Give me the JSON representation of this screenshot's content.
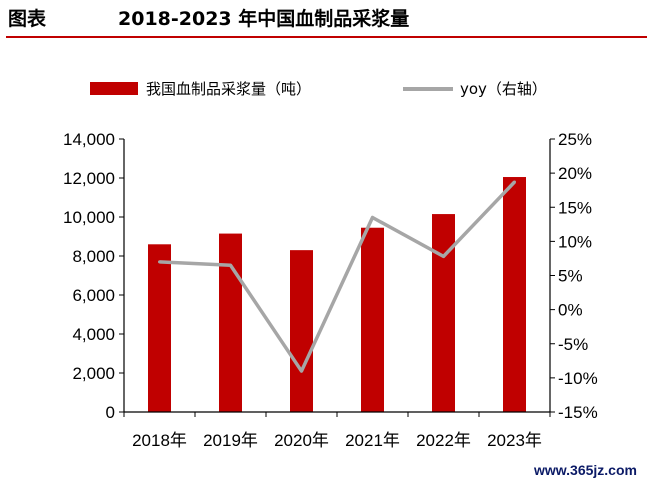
{
  "header": {
    "label": "图表",
    "title": "2018-2023 年中国血制品采浆量"
  },
  "watermark": "www.365jz.com",
  "colors": {
    "bar": "#c00000",
    "line": "#a6a6a6",
    "rule": "#c00000",
    "axis": "#000000"
  },
  "chart_data": {
    "type": "bar",
    "title": "2018-2023 年中国血制品采浆量",
    "categories": [
      "2018年",
      "2019年",
      "2020年",
      "2021年",
      "2022年",
      "2023年"
    ],
    "series": [
      {
        "name": "我国血制品采浆量（吨）",
        "type": "bar",
        "axis": "left",
        "values": [
          8600,
          9150,
          8300,
          9450,
          10150,
          12050
        ]
      },
      {
        "name": "yoy（右轴）",
        "type": "line",
        "axis": "right",
        "values": [
          7.0,
          6.5,
          -9.0,
          13.5,
          7.8,
          18.7
        ]
      }
    ],
    "y_left": {
      "min": 0,
      "max": 14000,
      "ticks": [
        0,
        2000,
        4000,
        6000,
        8000,
        10000,
        12000,
        14000
      ],
      "tick_labels": [
        "0",
        "2,000",
        "4,000",
        "6,000",
        "8,000",
        "10,000",
        "12,000",
        "14,000"
      ]
    },
    "y_right": {
      "min": -15,
      "max": 25,
      "ticks": [
        -15,
        -10,
        -5,
        0,
        5,
        10,
        15,
        20,
        25
      ],
      "tick_labels": [
        "-15%",
        "-10%",
        "-5%",
        "0%",
        "5%",
        "10%",
        "15%",
        "20%",
        "25%"
      ]
    },
    "legend_position": "top",
    "grid": false
  }
}
